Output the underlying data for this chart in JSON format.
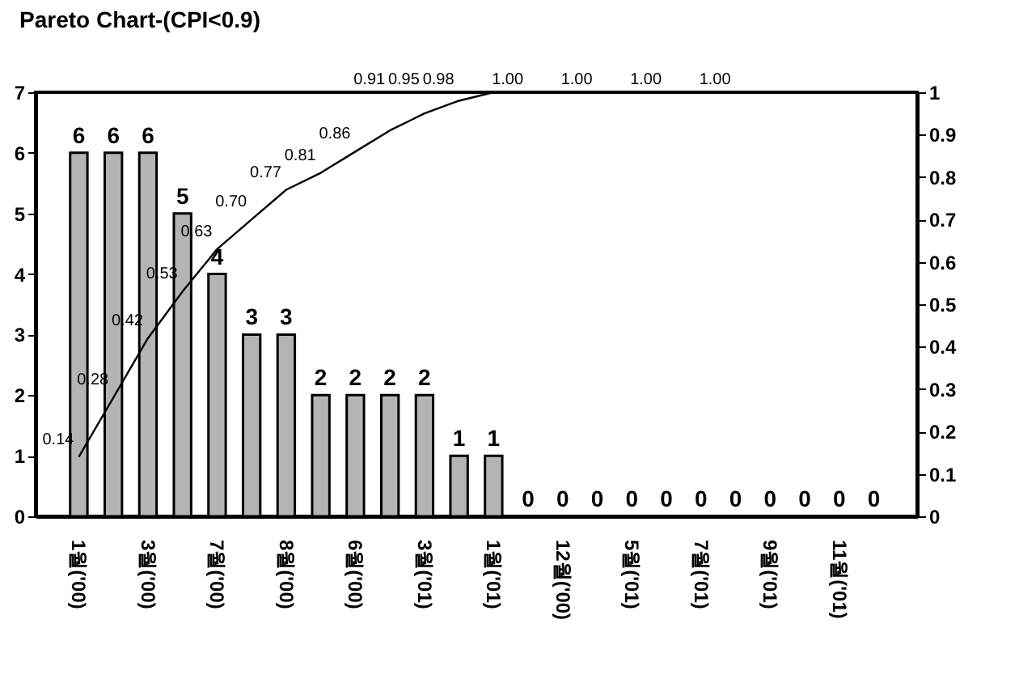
{
  "chart_data": {
    "type": "bar",
    "title": "Pareto Chart-(CPI<0.9)",
    "categories": [
      "1월('00)",
      null,
      "3월('00)",
      null,
      "7월('00)",
      null,
      "8월('00)",
      null,
      "6월('00)",
      null,
      "3월('01)",
      null,
      "1월('01)",
      null,
      "12월('00)",
      null,
      "5월('01)",
      null,
      "7월('01)",
      null,
      "9월('01)",
      null,
      "11월('01)",
      null
    ],
    "series": [
      {
        "type": "bar",
        "color": "#b4b4b4",
        "values": [
          6,
          6,
          6,
          5,
          4,
          3,
          3,
          2,
          2,
          2,
          2,
          1,
          1,
          0,
          0,
          0,
          0,
          0,
          0,
          0,
          0,
          0,
          0,
          0
        ],
        "value_labels": [
          "6",
          "6",
          "6",
          "5",
          "4",
          "3",
          "3",
          "2",
          "2",
          "2",
          "2",
          "1",
          "1",
          "0",
          "0",
          "0",
          "0",
          "0",
          "0",
          "0",
          "0",
          "0",
          "0",
          "0"
        ]
      },
      {
        "type": "line",
        "axis": "y2",
        "color": "#000000",
        "values": [
          0.14,
          0.28,
          0.42,
          0.53,
          0.63,
          0.7,
          0.77,
          0.81,
          0.86,
          0.91,
          0.95,
          0.98,
          1.0,
          1.0,
          1.0,
          1.0,
          1.0,
          1.0,
          1.0,
          1.0,
          1.0,
          1.0,
          1.0,
          1.0
        ],
        "value_labels": [
          "0.14",
          "0.28",
          "0.42",
          "0.53",
          "0.63",
          "0.70",
          "0.77",
          "0.81",
          "0.86",
          "0.91",
          "0.95",
          "0.98",
          null,
          "1.00",
          null,
          "1.00",
          null,
          "1.00",
          null,
          "1.00",
          null,
          null,
          null,
          null
        ]
      }
    ],
    "ylim": [
      0,
      7
    ],
    "yticks": [
      0,
      1,
      2,
      3,
      4,
      5,
      6,
      7
    ],
    "y2lim": [
      0,
      1
    ],
    "y2ticks": [
      0,
      0.1,
      0.2,
      0.3,
      0.4,
      0.5,
      0.6,
      0.7,
      0.8,
      0.9,
      1
    ]
  }
}
